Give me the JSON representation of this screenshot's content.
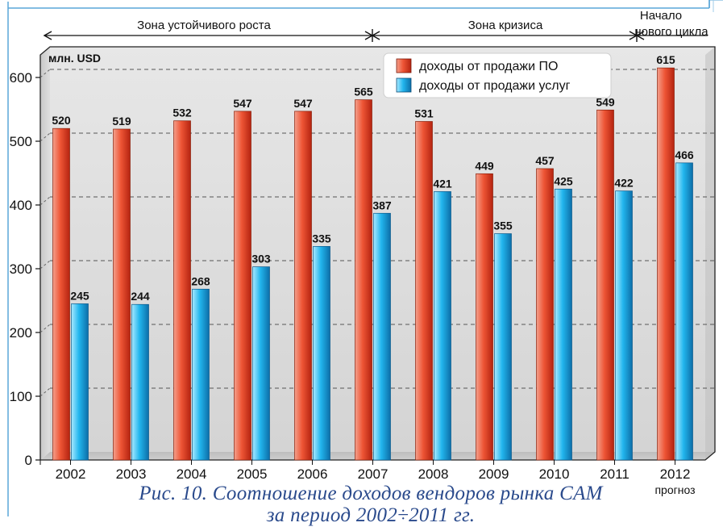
{
  "chart_data": {
    "type": "bar",
    "ylabel": "млн. USD",
    "ylim": [
      0,
      650
    ],
    "yticks": [
      0,
      100,
      200,
      300,
      400,
      500,
      600
    ],
    "grid": true,
    "categories": [
      "2002",
      "2003",
      "2004",
      "2005",
      "2006",
      "2007",
      "2008",
      "2009",
      "2010",
      "2011",
      "2012"
    ],
    "category_sublabels": {
      "2012": "прогноз"
    },
    "series": [
      {
        "name": "доходы от продажи ПО",
        "color": "#ef5a3c",
        "values": [
          520,
          519,
          532,
          547,
          547,
          565,
          531,
          449,
          457,
          549,
          615
        ]
      },
      {
        "name": "доходы от продажи услуг",
        "color": "#1fb8ee",
        "values": [
          245,
          244,
          268,
          303,
          335,
          387,
          421,
          355,
          425,
          422,
          466
        ]
      }
    ],
    "legend_position": "top-right",
    "zones": [
      {
        "label": "Зона устойчивого роста",
        "from": "2002",
        "to": "2007"
      },
      {
        "label": "Зона кризиса",
        "from": "2007",
        "to": "2011"
      },
      {
        "label_lines": [
          "Начало",
          "нового цикла"
        ],
        "from": "2011",
        "to": "2012"
      }
    ]
  },
  "caption": {
    "line1": "Рис. 10. Соотношение доходов вендоров рынка CAM",
    "line2": "за период 2002÷2011 гг."
  }
}
